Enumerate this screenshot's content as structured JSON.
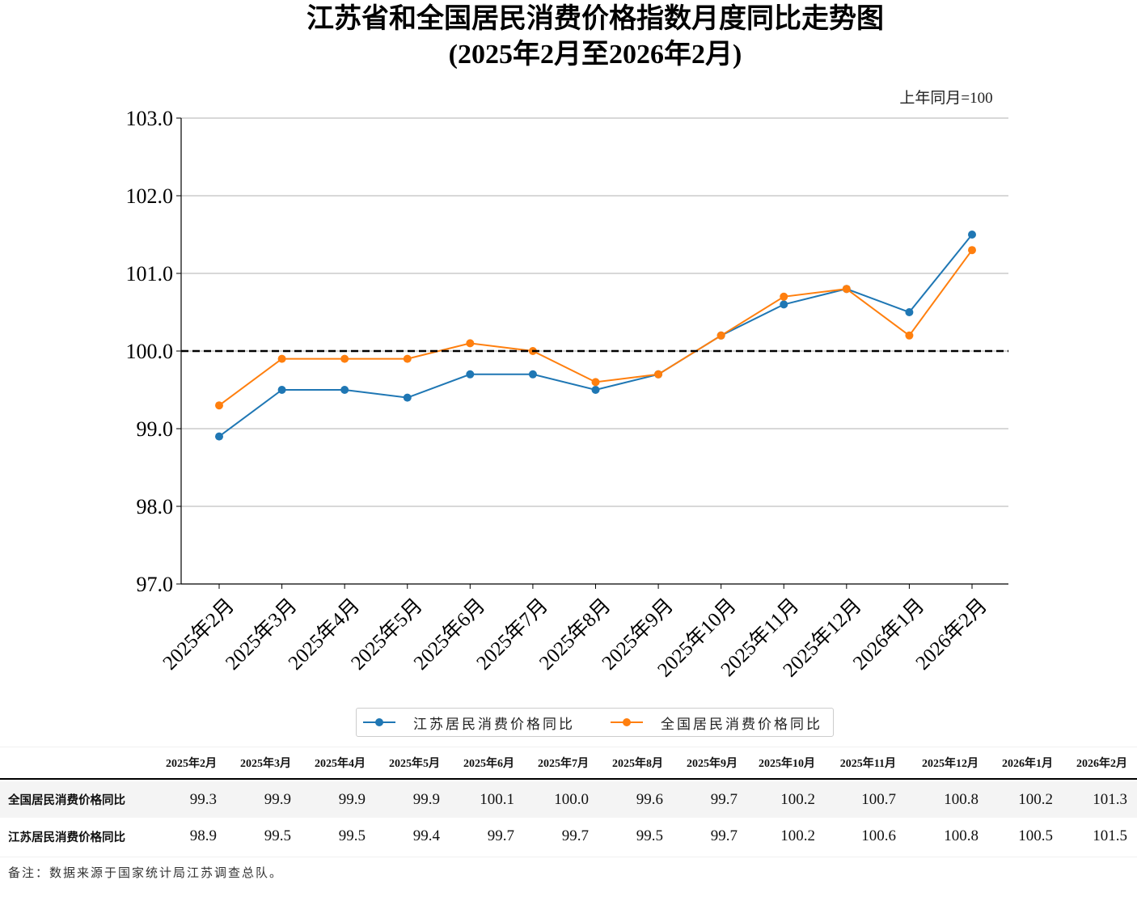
{
  "title": {
    "line1": "江苏省和全国居民消费价格指数月度同比走势图",
    "line2": "(2025年2月至2026年2月)"
  },
  "unit_note": "上年同月=100",
  "colors": {
    "jiangsu": "#1f77b4",
    "national": "#ff7f0e",
    "reference_line": "#000000",
    "grid": "#b0b0b0"
  },
  "chart_data": {
    "type": "line",
    "title": "江苏省和全国居民消费价格指数月度同比走势图",
    "subtitle": "(2025年2月至2026年2月)",
    "xlabel": "",
    "ylabel": "",
    "ylim": [
      97.0,
      103.0
    ],
    "yticks": [
      "97.0",
      "98.0",
      "99.0",
      "100.0",
      "101.0",
      "102.0",
      "103.0"
    ],
    "ytick_values": [
      97.0,
      98.0,
      99.0,
      100.0,
      101.0,
      102.0,
      103.0
    ],
    "grid": "horizontal",
    "reference_line": {
      "y": 100.0,
      "style": "dashed"
    },
    "categories": [
      "2025年2月",
      "2025年3月",
      "2025年4月",
      "2025年5月",
      "2025年6月",
      "2025年7月",
      "2025年8月",
      "2025年9月",
      "2025年10月",
      "2025年11月",
      "2025年12月",
      "2026年1月",
      "2026年2月"
    ],
    "series": [
      {
        "name": "江苏居民消费价格同比",
        "color": "#1f77b4",
        "values": [
          98.9,
          99.5,
          99.5,
          99.4,
          99.7,
          99.7,
          99.5,
          99.7,
          100.2,
          100.6,
          100.8,
          100.5,
          101.5
        ]
      },
      {
        "name": "全国居民消费价格同比",
        "color": "#ff7f0e",
        "values": [
          99.3,
          99.9,
          99.9,
          99.9,
          100.1,
          100.0,
          99.6,
          99.7,
          100.2,
          100.7,
          100.8,
          100.2,
          101.3
        ]
      }
    ],
    "legend": "bottom-center"
  },
  "legend": {
    "items": [
      {
        "label": "江苏居民消费价格同比"
      },
      {
        "label": "全国居民消费价格同比"
      }
    ]
  },
  "table": {
    "headers": [
      "2025年2月",
      "2025年3月",
      "2025年4月",
      "2025年5月",
      "2025年6月",
      "2025年7月",
      "2025年8月",
      "2025年9月",
      "2025年10月",
      "2025年11月",
      "2025年12月",
      "2026年1月",
      "2026年2月"
    ],
    "rows": [
      {
        "label": "全国居民消费价格同比",
        "values": [
          "99.3",
          "99.9",
          "99.9",
          "99.9",
          "100.1",
          "100.0",
          "99.6",
          "99.7",
          "100.2",
          "100.7",
          "100.8",
          "100.2",
          "101.3"
        ]
      },
      {
        "label": "江苏居民消费价格同比",
        "values": [
          "98.9",
          "99.5",
          "99.5",
          "99.4",
          "99.7",
          "99.7",
          "99.5",
          "99.7",
          "100.2",
          "100.6",
          "100.8",
          "100.5",
          "101.5"
        ]
      }
    ]
  },
  "footnote": "备注：数据来源于国家统计局江苏调查总队。"
}
